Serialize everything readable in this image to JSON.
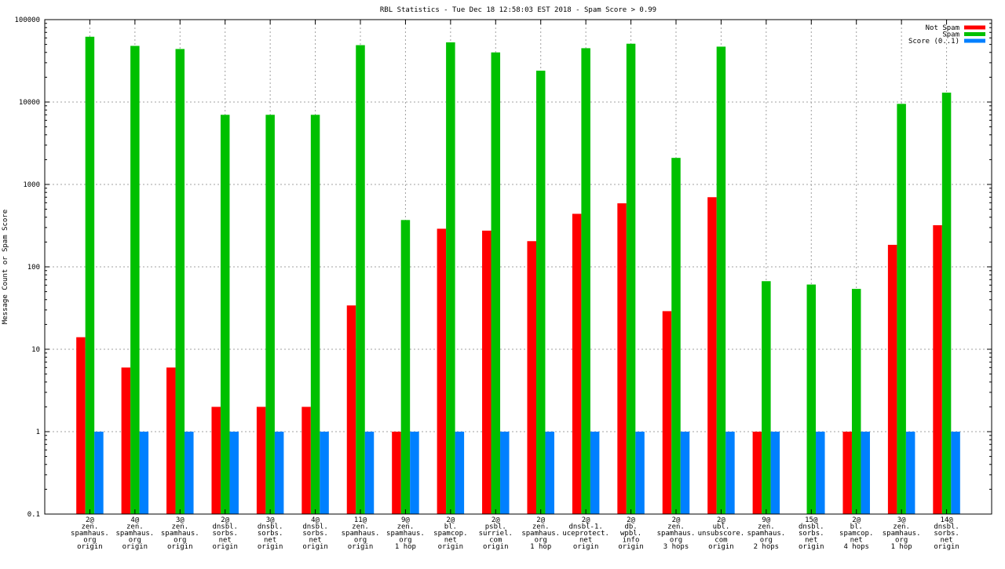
{
  "chart_data": {
    "type": "bar",
    "title": "RBL Statistics - Tue Dec 18 12:58:03 EST 2018 - Spam Score > 0.99",
    "xlabel": "",
    "ylabel": "Message Count or Spam Score",
    "yscale": "log",
    "ylim": [
      0.1,
      100000
    ],
    "yticks": [
      "0.1",
      "1",
      "10",
      "100",
      "1000",
      "10000",
      "100000"
    ],
    "grid": true,
    "legend_position": "top-right",
    "categories": [
      [
        "2@",
        "zen.",
        "spamhaus.",
        "org",
        "origin"
      ],
      [
        "4@",
        "zen.",
        "spamhaus.",
        "org",
        "origin"
      ],
      [
        "3@",
        "zen.",
        "spamhaus.",
        "org",
        "origin"
      ],
      [
        "2@",
        "dnsbl.",
        "sorbs.",
        "net",
        "origin"
      ],
      [
        "3@",
        "dnsbl.",
        "sorbs.",
        "net",
        "origin"
      ],
      [
        "4@",
        "dnsbl.",
        "sorbs.",
        "net",
        "origin"
      ],
      [
        "11@",
        "zen.",
        "spamhaus.",
        "org",
        "origin"
      ],
      [
        "9@",
        "zen.",
        "spamhaus.",
        "org",
        "1 hop"
      ],
      [
        "2@",
        "bl.",
        "spamcop.",
        "net",
        "origin"
      ],
      [
        "2@",
        "psbl.",
        "surriel.",
        "com",
        "origin"
      ],
      [
        "2@",
        "zen.",
        "spamhaus.",
        "org",
        "1 hop"
      ],
      [
        "2@",
        "dnsbl-1.",
        "uceprotect.",
        "net",
        "origin"
      ],
      [
        "2@",
        "db.",
        "wpbl.",
        "info",
        "origin"
      ],
      [
        "2@",
        "zen.",
        "spamhaus.",
        "org",
        "3 hops"
      ],
      [
        "2@",
        "ubl.",
        "unsubscore.",
        "com",
        "origin"
      ],
      [
        "9@",
        "zen.",
        "spamhaus.",
        "org",
        "2 hops"
      ],
      [
        "15@",
        "dnsbl.",
        "sorbs.",
        "net",
        "origin"
      ],
      [
        "2@",
        "bl.",
        "spamcop.",
        "net",
        "4 hops"
      ],
      [
        "3@",
        "zen.",
        "spamhaus.",
        "org",
        "1 hop"
      ],
      [
        "14@",
        "dnsbl.",
        "sorbs.",
        "net",
        "origin"
      ]
    ],
    "series": [
      {
        "name": "Not Spam",
        "color": "#ff0000",
        "values": [
          14,
          6,
          6,
          2,
          2,
          2,
          34,
          1,
          290,
          275,
          205,
          440,
          590,
          29,
          700,
          1,
          null,
          1,
          185,
          320
        ]
      },
      {
        "name": "Spam",
        "color": "#00c000",
        "values": [
          62000,
          48000,
          44000,
          7000,
          7000,
          7000,
          49000,
          370,
          53000,
          40000,
          24000,
          45000,
          51000,
          2100,
          47000,
          67,
          61,
          54,
          9500,
          13000
        ]
      },
      {
        "name": "Score (0..1)",
        "color": "#0080ff",
        "values": [
          1,
          1,
          1,
          1,
          1,
          1,
          1,
          1,
          1,
          1,
          1,
          1,
          1,
          1,
          1,
          1,
          1,
          1,
          1,
          1
        ]
      }
    ]
  }
}
